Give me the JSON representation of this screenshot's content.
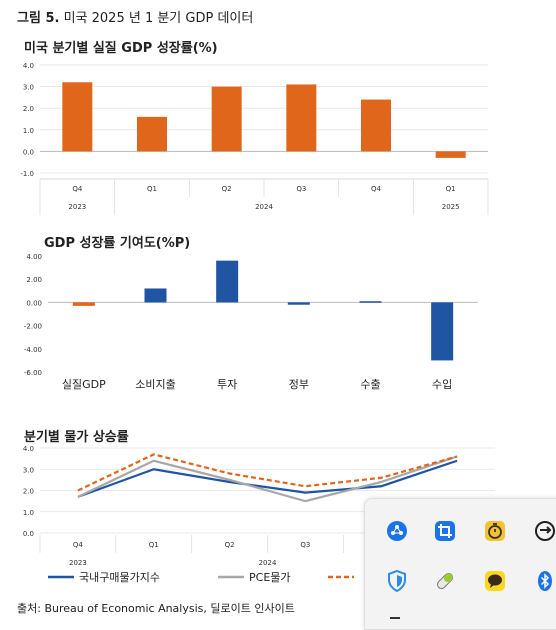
{
  "figure": {
    "label": "그림 5.",
    "title": "미국 2025 년 1 분기 GDP 데이터",
    "source": "출처: Bureau of Economic Analysis, 딜로이트 인사이트"
  },
  "chart_data": [
    {
      "type": "bar",
      "title": "미국 분기별 실질 GDP 성장률(%)",
      "categories": [
        "Q4",
        "Q1",
        "Q2",
        "Q3",
        "Q4",
        "Q1"
      ],
      "year_groups": [
        {
          "label": "2023",
          "start": 0,
          "end": 0
        },
        {
          "label": "2024",
          "start": 1,
          "end": 4
        },
        {
          "label": "2025",
          "start": 5,
          "end": 5
        }
      ],
      "values": [
        3.2,
        1.6,
        3.0,
        3.1,
        2.4,
        -0.3
      ],
      "ylim": [
        -1.0,
        4.0
      ],
      "yticks": [
        "4.0",
        "3.0",
        "2.0",
        "1.0",
        "0.0",
        "-1.0"
      ],
      "color": "#e0661c",
      "grid": true
    },
    {
      "type": "bar",
      "title": "GDP 성장률 기여도(%P)",
      "categories": [
        "실질GDP",
        "소비지출",
        "투자",
        "정부",
        "수출",
        "수입"
      ],
      "values": [
        -0.3,
        1.2,
        3.6,
        -0.2,
        0.1,
        -5.0
      ],
      "colors": [
        "#e0661c",
        "#1f55a3",
        "#1f55a3",
        "#1f55a3",
        "#1f55a3",
        "#1f55a3"
      ],
      "ylim": [
        -6.0,
        4.0
      ],
      "yticks": [
        "4.00",
        "2.00",
        "0.00",
        "-2.00",
        "-4.00",
        "-6.00"
      ],
      "grid": false
    },
    {
      "type": "line",
      "title": "분기별 물가 상승률",
      "categories": [
        "Q4",
        "Q1",
        "Q2",
        "Q3",
        "Q4",
        "Q1"
      ],
      "year_groups": [
        {
          "label": "2023",
          "start": 0,
          "end": 0
        },
        {
          "label": "2024",
          "start": 1,
          "end": 4
        }
      ],
      "ylim": [
        0.0,
        4.0
      ],
      "yticks": [
        "4.0",
        "3.0",
        "2.0",
        "1.0",
        "0.0"
      ],
      "series": [
        {
          "name": "국내구매물가지수",
          "values": [
            1.7,
            3.0,
            2.4,
            1.9,
            2.2,
            3.4
          ],
          "color": "#1f55a3",
          "dash": false
        },
        {
          "name": "PCE물가",
          "values": [
            1.7,
            3.4,
            2.5,
            1.5,
            2.4,
            3.6
          ],
          "color": "#a8a8a8",
          "dash": false
        },
        {
          "name": "",
          "values": [
            2.0,
            3.7,
            2.8,
            2.2,
            2.6,
            3.6
          ],
          "color": "#e0661c",
          "dash": true
        }
      ],
      "grid": true
    }
  ],
  "taskbar_tray": {
    "icons": [
      "bluetooth-network-icon",
      "crop-icon",
      "timer-app-icon",
      "sync-app-icon",
      "shield-icon",
      "pill-icon",
      "chat-bubble-icon",
      "bluetooth-icon"
    ]
  }
}
